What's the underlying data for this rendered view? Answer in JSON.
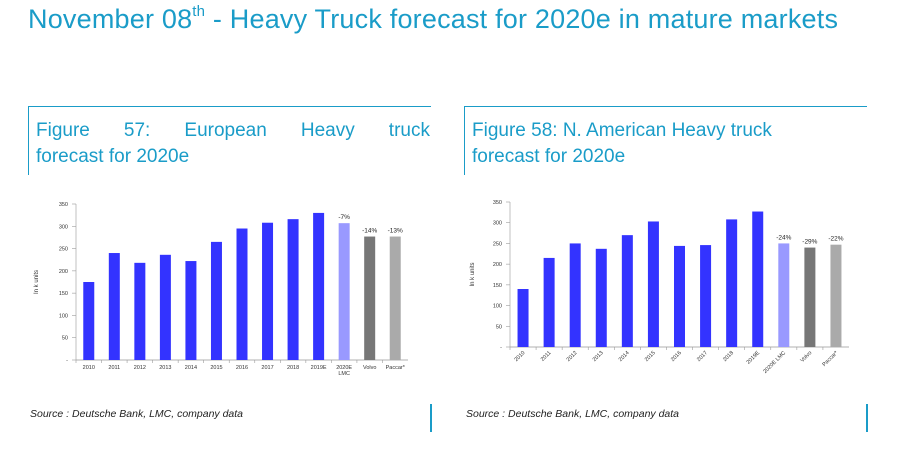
{
  "header": {
    "title_pre": "November 08",
    "title_sup": "th",
    "title_post": " - Heavy Truck forecast for 2020e in mature markets"
  },
  "colors": {
    "accent": "#1a9cc8",
    "bar_blue": "#3333ff",
    "bar_forecast": "#9999ff",
    "bar_volvo": "#777777",
    "bar_paccar": "#aaaaaa"
  },
  "chart_data": [
    {
      "type": "bar",
      "title_line1": [
        "Figure",
        "57:",
        "European",
        "Heavy",
        "truck"
      ],
      "title_line2": "forecast for 2020e",
      "ylabel": "In k units",
      "ylim": [
        0,
        350
      ],
      "yticks": [
        "-",
        "50",
        "100",
        "150",
        "200",
        "250",
        "300",
        "350"
      ],
      "categories": [
        "2010",
        "2011",
        "2012",
        "2013",
        "2014",
        "2015",
        "2016",
        "2017",
        "2018",
        "2019E",
        "2020E LMC",
        "Volvo",
        "Paccar*"
      ],
      "values": [
        175,
        240,
        218,
        236,
        222,
        265,
        295,
        308,
        316,
        330,
        307,
        277,
        277
      ],
      "annotations": [
        "",
        "",
        "",
        "",
        "",
        "",
        "",
        "",
        "",
        "",
        "-7%",
        "-14%",
        "-13%"
      ],
      "source": "Source : Deutsche Bank, LMC, company data"
    },
    {
      "type": "bar",
      "title_line1": [
        "Figure 58: N. American Heavy truck"
      ],
      "title_line2": "forecast for 2020e",
      "ylabel": "In k units",
      "ylim": [
        0,
        350
      ],
      "yticks": [
        "-",
        "50",
        "100",
        "150",
        "200",
        "250",
        "300",
        "350"
      ],
      "categories": [
        "2010",
        "2011",
        "2012",
        "2013",
        "2014",
        "2015",
        "2016",
        "2017",
        "2018",
        "2019E",
        "2020E LMC",
        "Volvo",
        "Paccar*"
      ],
      "values": [
        140,
        215,
        250,
        237,
        270,
        303,
        244,
        246,
        308,
        327,
        250,
        240,
        247
      ],
      "annotations": [
        "",
        "",
        "",
        "",
        "",
        "",
        "",
        "",
        "",
        "",
        "-24%",
        "-29%",
        "-22%"
      ],
      "source": "Source : Deutsche Bank, LMC, company data"
    }
  ]
}
